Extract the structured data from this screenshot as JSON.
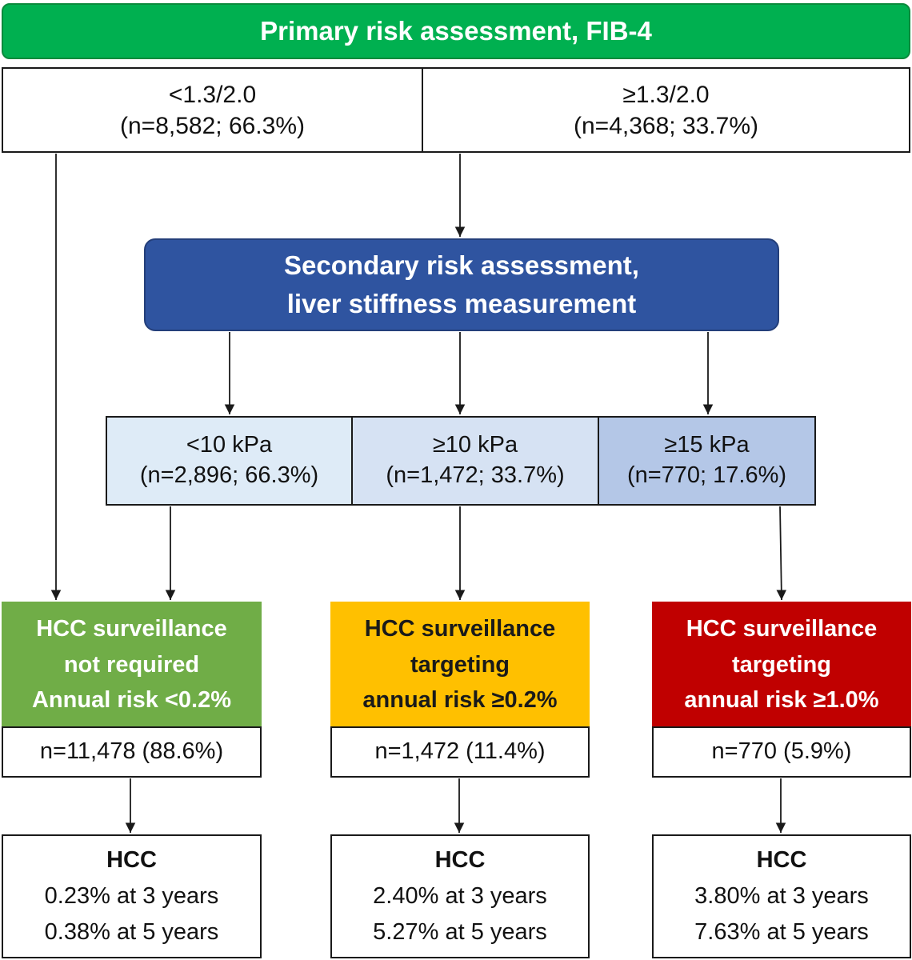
{
  "primary": {
    "title": "Primary risk assessment, FIB-4"
  },
  "fib4": {
    "low": {
      "threshold": "<1.3/2.0",
      "count": "(n=8,582; 66.3%)"
    },
    "high": {
      "threshold": "≥1.3/2.0",
      "count": "(n=4,368; 33.7%)"
    }
  },
  "secondary": {
    "line1": "Secondary risk assessment,",
    "line2": "liver stiffness measurement"
  },
  "lsm": [
    {
      "threshold": "<10 kPa",
      "count": "(n=2,896; 66.3%)"
    },
    {
      "threshold": "≥10 kPa",
      "count": "(n=1,472; 33.7%)"
    },
    {
      "threshold": "≥15 kPa",
      "count": "(n=770; 17.6%)"
    }
  ],
  "surveillance": [
    {
      "line1": "HCC surveillance",
      "line2": "not required",
      "line3": "Annual risk <0.2%",
      "color": "#70ad47"
    },
    {
      "line1": "HCC surveillance",
      "line2": "targeting",
      "line3": "annual risk ≥0.2%",
      "color": "#ffc000"
    },
    {
      "line1": "HCC surveillance",
      "line2": "targeting",
      "line3": "annual risk ≥1.0%",
      "color": "#c00000"
    }
  ],
  "counts": [
    "n=11,478 (88.6%)",
    "n=1,472 (11.4%)",
    "n=770 (5.9%)"
  ],
  "outcomes": [
    {
      "title": "HCC",
      "three_year": "0.23% at 3 years",
      "five_year": "0.38% at 5 years"
    },
    {
      "title": "HCC",
      "three_year": "2.40% at 3 years",
      "five_year": "5.27% at 5 years"
    },
    {
      "title": "HCC",
      "three_year": "3.80% at 3 years",
      "five_year": "7.63% at 5 years"
    }
  ]
}
